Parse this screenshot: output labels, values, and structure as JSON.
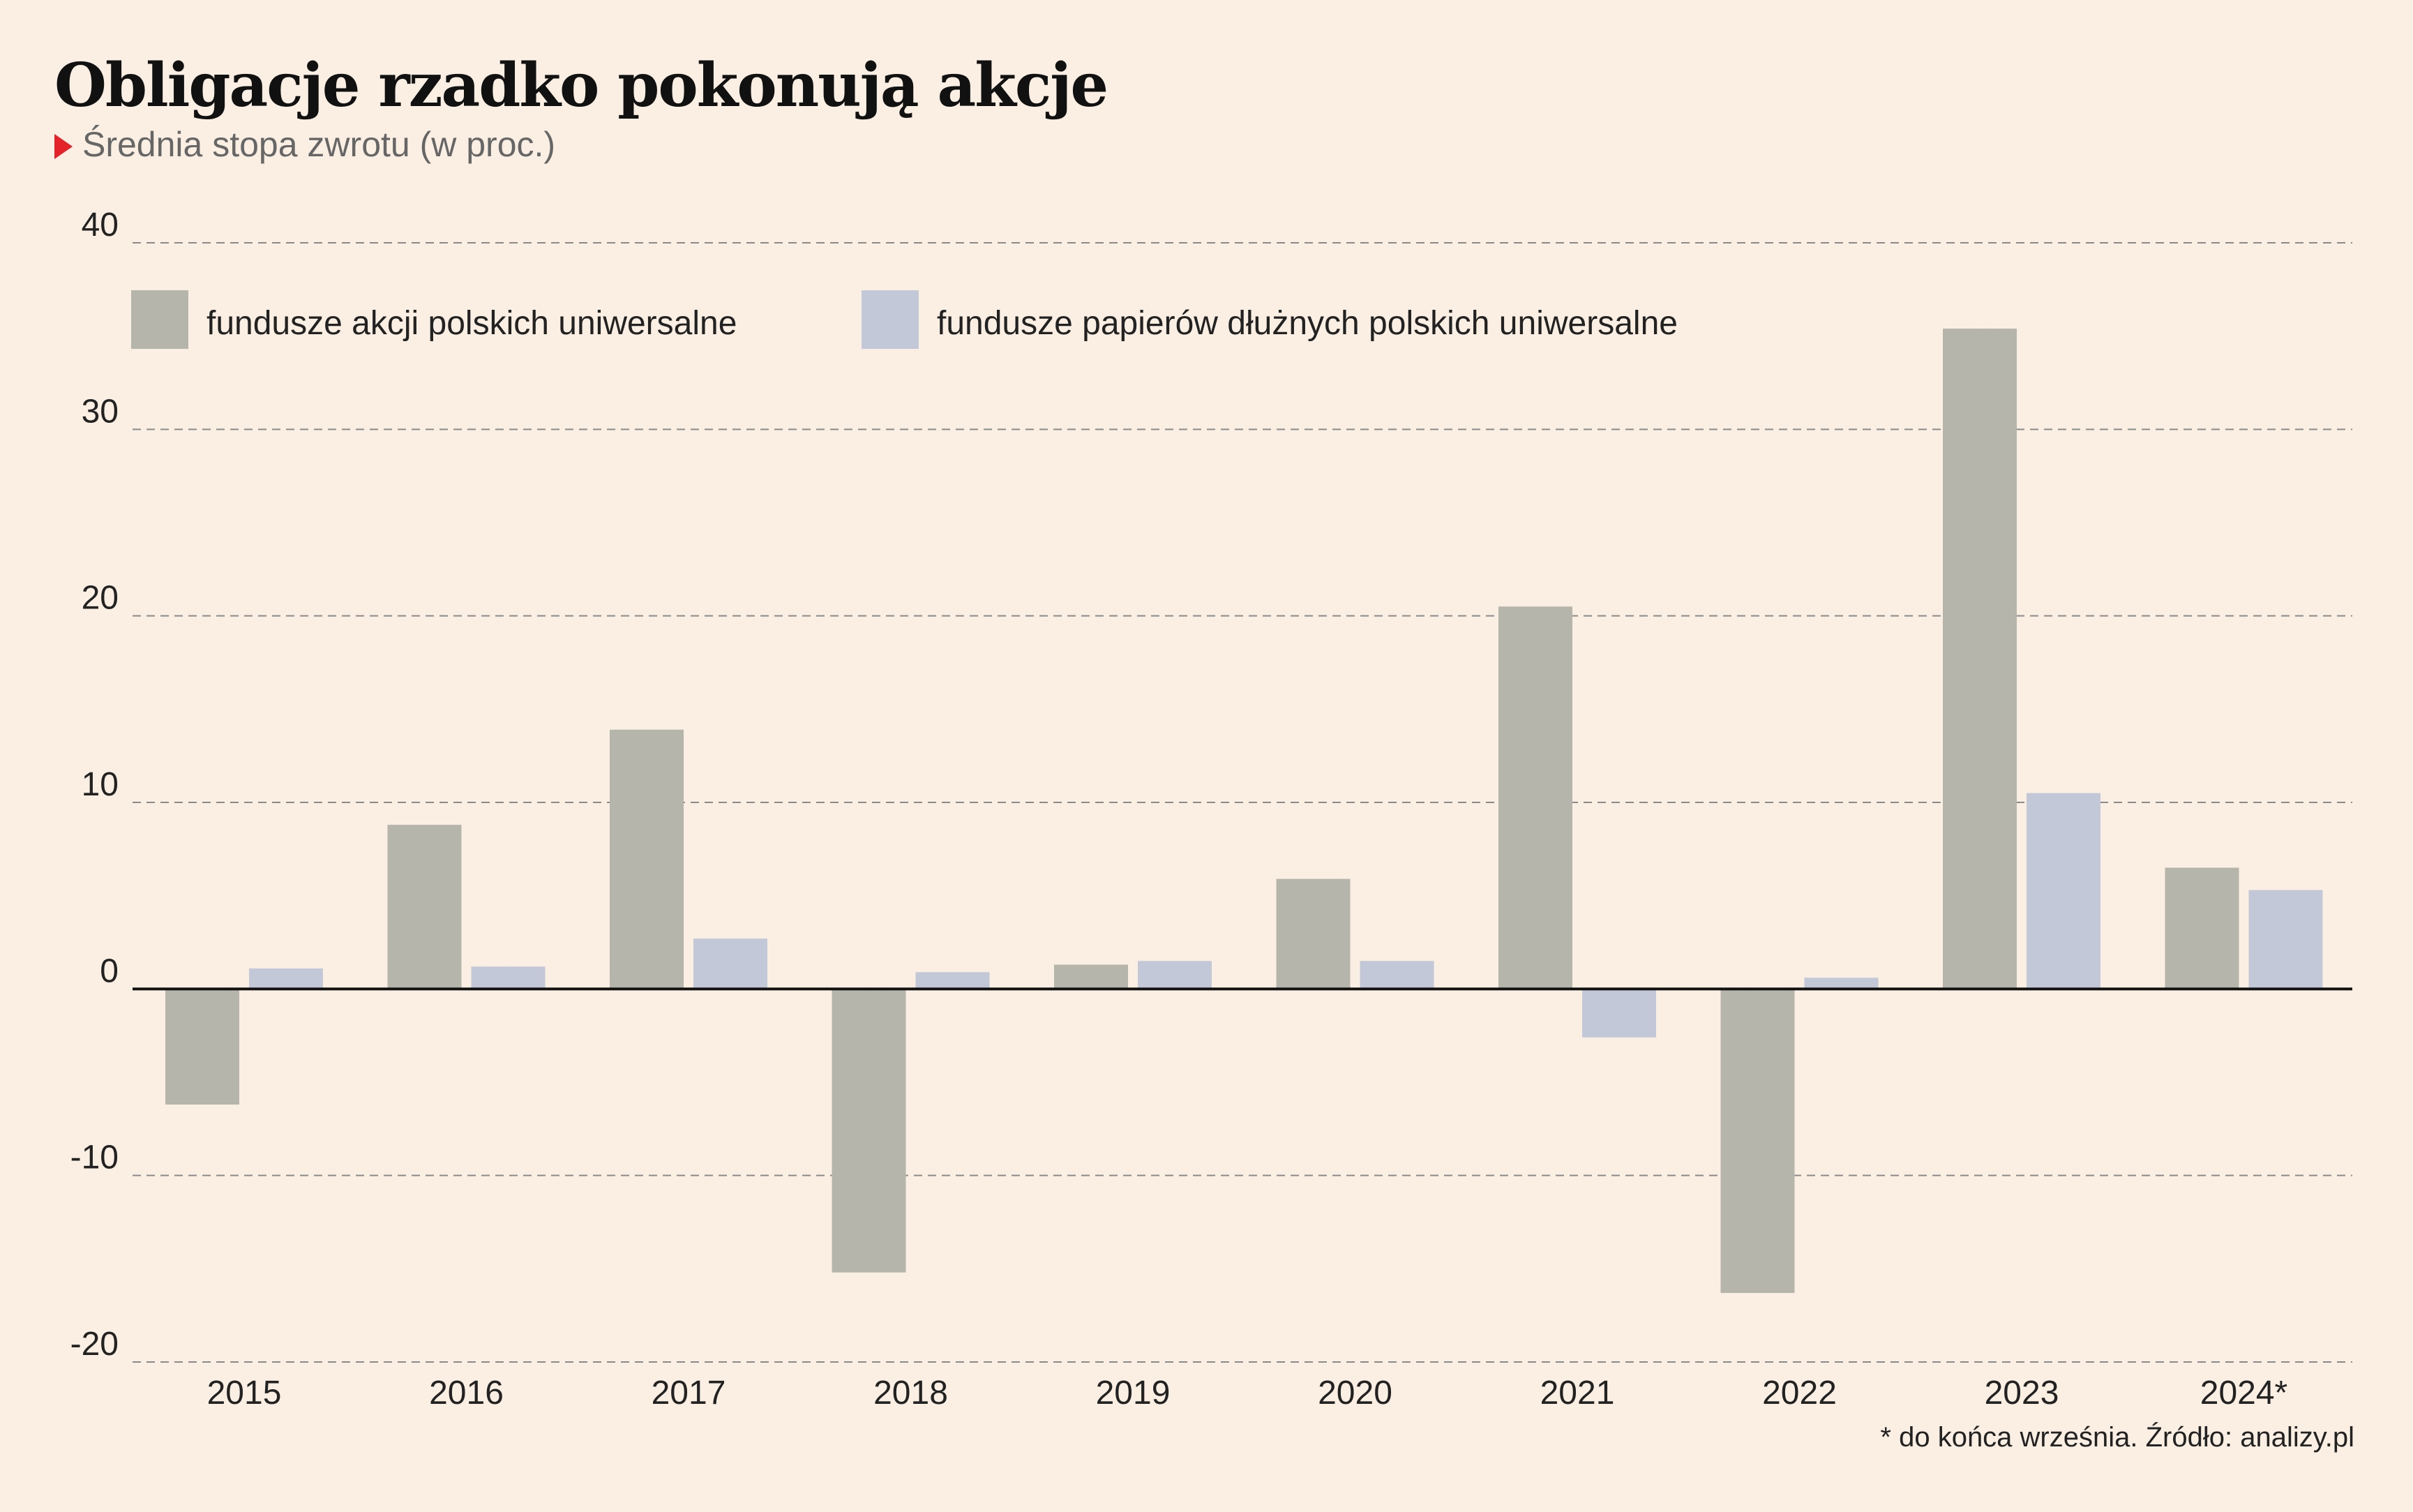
{
  "chart_data": {
    "type": "bar",
    "title": "Obligacje rzadko pokonują akcje",
    "subtitle": "Średnia stopa zwrotu (w proc.)",
    "footnote": "* do końca września. Źródło: analizy.pl",
    "categories": [
      "2015",
      "2016",
      "2017",
      "2018",
      "2019",
      "2020",
      "2021",
      "2022",
      "2023",
      "2024*"
    ],
    "series": [
      {
        "name": "fundusze akcji polskich uniwersalne",
        "color": "#b6b5ab",
        "values": [
          -6.2,
          8.8,
          13.9,
          -15.2,
          1.3,
          5.9,
          20.5,
          -16.3,
          35.4,
          6.5
        ]
      },
      {
        "name": "fundusze papierów dłużnych polskich uniwersalne",
        "color": "#c3c8d8",
        "values": [
          1.1,
          1.2,
          2.7,
          0.9,
          1.5,
          1.5,
          -2.6,
          0.6,
          10.5,
          5.3
        ]
      }
    ],
    "ylim": [
      -20,
      40
    ],
    "yticks": [
      "40",
      "30",
      "20",
      "10",
      "0",
      "-10",
      "-20"
    ],
    "grid": true,
    "legend_position": "top-left"
  }
}
